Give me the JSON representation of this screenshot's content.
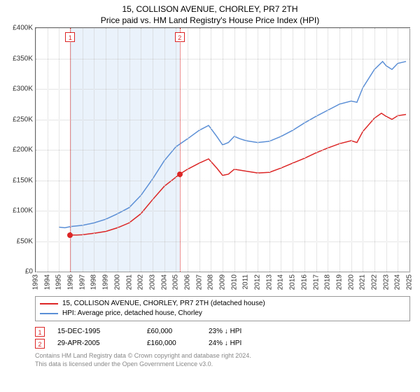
{
  "title": "15, COLLISON AVENUE, CHORLEY, PR7 2TH",
  "subtitle": "Price paid vs. HM Land Registry's House Price Index (HPI)",
  "title_fontsize": 12,
  "subtitle_fontsize": 12,
  "chart": {
    "type": "line",
    "background_color": "#ffffff",
    "border_color": "#666666",
    "grid_color": "#cccccc",
    "text_color": "#333333",
    "x_min": 1993,
    "x_max": 2025,
    "y_min": 0,
    "y_max": 400000,
    "x_ticks": [
      1993,
      1994,
      1995,
      1996,
      1997,
      1998,
      1999,
      2000,
      2001,
      2002,
      2003,
      2004,
      2005,
      2006,
      2007,
      2008,
      2009,
      2010,
      2011,
      2012,
      2013,
      2014,
      2015,
      2016,
      2017,
      2018,
      2019,
      2020,
      2021,
      2022,
      2023,
      2024,
      2025
    ],
    "y_ticks": [
      0,
      50000,
      100000,
      150000,
      200000,
      250000,
      300000,
      350000,
      400000
    ],
    "y_tick_labels": [
      "£0",
      "£50K",
      "£100K",
      "£150K",
      "£200K",
      "£250K",
      "£300K",
      "£350K",
      "£400K"
    ],
    "band": {
      "from": 1995.96,
      "to": 2005.33,
      "color": "#eaf2fb"
    },
    "series": [
      {
        "name": "property",
        "label": "15, COLLISON AVENUE, CHORLEY, PR7 2TH (detached house)",
        "color": "#dc2626",
        "line_width": 1.5,
        "points": [
          [
            1995.96,
            60000
          ],
          [
            1996.5,
            60000
          ],
          [
            1997,
            60500
          ],
          [
            1998,
            63000
          ],
          [
            1999,
            66000
          ],
          [
            2000,
            72000
          ],
          [
            2001,
            80000
          ],
          [
            2002,
            95000
          ],
          [
            2003,
            118000
          ],
          [
            2004,
            140000
          ],
          [
            2005.33,
            160000
          ],
          [
            2006,
            168000
          ],
          [
            2007,
            178000
          ],
          [
            2007.8,
            185000
          ],
          [
            2008.5,
            170000
          ],
          [
            2009,
            158000
          ],
          [
            2009.5,
            160000
          ],
          [
            2010,
            168000
          ],
          [
            2011,
            165000
          ],
          [
            2012,
            162000
          ],
          [
            2013,
            163000
          ],
          [
            2014,
            170000
          ],
          [
            2015,
            178000
          ],
          [
            2016,
            186000
          ],
          [
            2017,
            195000
          ],
          [
            2018,
            203000
          ],
          [
            2019,
            210000
          ],
          [
            2020,
            215000
          ],
          [
            2020.5,
            212000
          ],
          [
            2021,
            230000
          ],
          [
            2022,
            252000
          ],
          [
            2022.6,
            260000
          ],
          [
            2023,
            255000
          ],
          [
            2023.5,
            250000
          ],
          [
            2024,
            256000
          ],
          [
            2024.7,
            258000
          ]
        ]
      },
      {
        "name": "hpi",
        "label": "HPI: Average price, detached house, Chorley",
        "color": "#5b8fd6",
        "line_width": 1.5,
        "points": [
          [
            1995,
            73000
          ],
          [
            1995.5,
            72000
          ],
          [
            1996,
            74000
          ],
          [
            1997,
            76000
          ],
          [
            1998,
            80000
          ],
          [
            1999,
            86000
          ],
          [
            2000,
            95000
          ],
          [
            2001,
            105000
          ],
          [
            2002,
            125000
          ],
          [
            2003,
            152000
          ],
          [
            2004,
            182000
          ],
          [
            2005,
            205000
          ],
          [
            2006,
            218000
          ],
          [
            2007,
            232000
          ],
          [
            2007.8,
            240000
          ],
          [
            2008.5,
            222000
          ],
          [
            2009,
            208000
          ],
          [
            2009.5,
            212000
          ],
          [
            2010,
            222000
          ],
          [
            2010.5,
            218000
          ],
          [
            2011,
            215000
          ],
          [
            2012,
            212000
          ],
          [
            2013,
            214000
          ],
          [
            2014,
            222000
          ],
          [
            2015,
            232000
          ],
          [
            2016,
            244000
          ],
          [
            2017,
            255000
          ],
          [
            2018,
            265000
          ],
          [
            2019,
            275000
          ],
          [
            2020,
            280000
          ],
          [
            2020.5,
            278000
          ],
          [
            2021,
            302000
          ],
          [
            2022,
            332000
          ],
          [
            2022.7,
            345000
          ],
          [
            2023,
            338000
          ],
          [
            2023.5,
            332000
          ],
          [
            2024,
            342000
          ],
          [
            2024.7,
            345000
          ]
        ]
      }
    ],
    "markers": [
      {
        "n": "1",
        "x": 1995.96,
        "y": 60000,
        "color": "#dc2626"
      },
      {
        "n": "2",
        "x": 2005.33,
        "y": 160000,
        "color": "#dc2626"
      }
    ]
  },
  "legend": {
    "border_color": "#999999",
    "items": [
      {
        "color": "#dc2626",
        "label": "15, COLLISON AVENUE, CHORLEY, PR7 2TH (detached house)"
      },
      {
        "color": "#5b8fd6",
        "label": "HPI: Average price, detached house, Chorley"
      }
    ]
  },
  "sales": [
    {
      "n": "1",
      "color": "#dc2626",
      "date": "15-DEC-1995",
      "price": "£60,000",
      "diff": "23% ↓ HPI"
    },
    {
      "n": "2",
      "color": "#dc2626",
      "date": "29-APR-2005",
      "price": "£160,000",
      "diff": "24% ↓ HPI"
    }
  ],
  "footer_line1": "Contains HM Land Registry data © Crown copyright and database right 2024.",
  "footer_line2": "This data is licensed under the Open Government Licence v3.0."
}
